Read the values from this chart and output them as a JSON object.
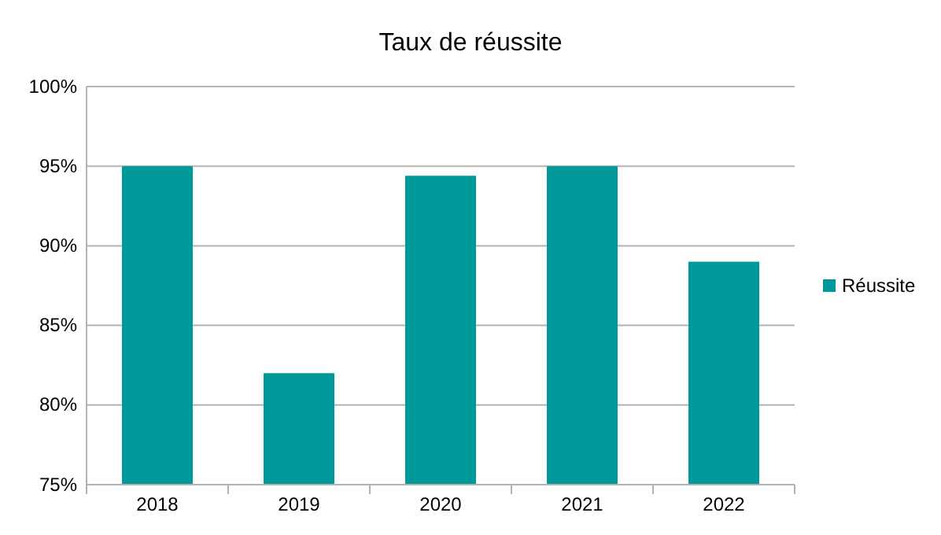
{
  "chart_data": {
    "type": "bar",
    "title": "Taux de réussite",
    "categories": [
      "2018",
      "2019",
      "2020",
      "2021",
      "2022"
    ],
    "series": [
      {
        "name": "Réussite",
        "color": "#009999",
        "values": [
          95,
          82,
          94.4,
          95,
          89
        ]
      }
    ],
    "ylim": [
      75,
      100
    ],
    "yticks": [
      {
        "value": 75,
        "label": "75%"
      },
      {
        "value": 80,
        "label": "80%"
      },
      {
        "value": 85,
        "label": "85%"
      },
      {
        "value": 90,
        "label": "90%"
      },
      {
        "value": 95,
        "label": "95%"
      },
      {
        "value": 100,
        "label": "100%"
      }
    ],
    "grid": "y",
    "legend": "right"
  }
}
